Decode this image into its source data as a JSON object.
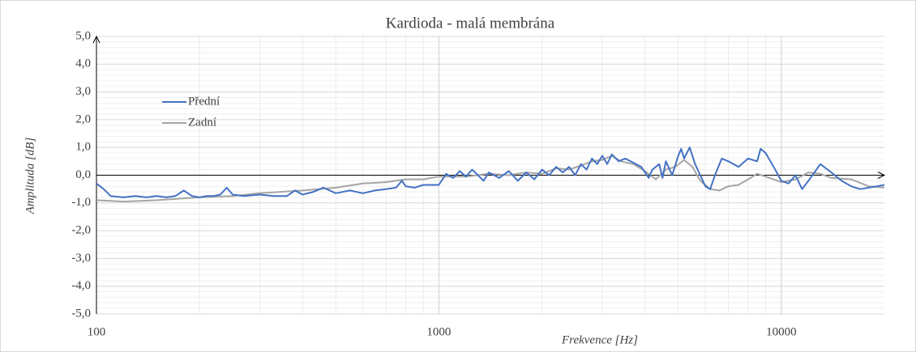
{
  "chart_data": {
    "type": "line",
    "title": "Kardioda - malá membrána",
    "xlabel": "Frekvence [Hz]",
    "ylabel": "Amplituda [dB]",
    "xscale": "log",
    "xlim": [
      100,
      20000
    ],
    "xticks": [
      100,
      1000,
      10000
    ],
    "ylim": [
      -5,
      5
    ],
    "yticks": [
      {
        "value": -5,
        "label": "-5,0"
      },
      {
        "value": -4,
        "label": "-4,0"
      },
      {
        "value": -3,
        "label": "-3,0"
      },
      {
        "value": -2,
        "label": "-2,0"
      },
      {
        "value": -1,
        "label": "-1,0"
      },
      {
        "value": 0,
        "label": "0,0"
      },
      {
        "value": 1,
        "label": "1,0"
      },
      {
        "value": 2,
        "label": "2,0"
      },
      {
        "value": 3,
        "label": "3,0"
      },
      {
        "value": 4,
        "label": "4,0"
      },
      {
        "value": 5,
        "label": "5,0"
      }
    ],
    "grid": true,
    "minor_grid": true,
    "legend": "upper left",
    "series": [
      {
        "name": "Přední",
        "color": "#4472c4",
        "x": [
          100,
          105,
          110,
          120,
          130,
          140,
          150,
          160,
          170,
          180,
          190,
          200,
          210,
          220,
          230,
          240,
          250,
          270,
          300,
          330,
          360,
          380,
          400,
          430,
          460,
          500,
          550,
          600,
          650,
          700,
          750,
          780,
          800,
          850,
          900,
          1000,
          1050,
          1100,
          1150,
          1200,
          1250,
          1300,
          1350,
          1400,
          1500,
          1600,
          1700,
          1800,
          1900,
          2000,
          2100,
          2200,
          2300,
          2400,
          2500,
          2600,
          2700,
          2800,
          2900,
          3000,
          3100,
          3200,
          3350,
          3500,
          3700,
          3900,
          4000,
          4100,
          4200,
          4400,
          4500,
          4600,
          4800,
          5000,
          5100,
          5200,
          5400,
          5600,
          5800,
          6000,
          6200,
          6400,
          6700,
          7000,
          7500,
          8000,
          8500,
          8700,
          9000,
          9500,
          10000,
          10500,
          11000,
          11500,
          12000,
          13000,
          14000,
          15000,
          16000,
          17000,
          18000,
          19000,
          20000
        ],
        "values": [
          -0.3,
          -0.5,
          -0.75,
          -0.8,
          -0.75,
          -0.8,
          -0.75,
          -0.8,
          -0.75,
          -0.55,
          -0.75,
          -0.8,
          -0.75,
          -0.75,
          -0.7,
          -0.45,
          -0.7,
          -0.75,
          -0.7,
          -0.75,
          -0.75,
          -0.55,
          -0.7,
          -0.6,
          -0.45,
          -0.65,
          -0.55,
          -0.65,
          -0.55,
          -0.5,
          -0.45,
          -0.2,
          -0.4,
          -0.45,
          -0.35,
          -0.35,
          0.05,
          -0.1,
          0.15,
          -0.05,
          0.2,
          0.0,
          -0.2,
          0.1,
          -0.1,
          0.15,
          -0.2,
          0.1,
          -0.15,
          0.2,
          0.0,
          0.3,
          0.1,
          0.3,
          0.0,
          0.4,
          0.2,
          0.6,
          0.4,
          0.7,
          0.4,
          0.75,
          0.5,
          0.6,
          0.45,
          0.3,
          0.1,
          -0.1,
          0.2,
          0.4,
          -0.1,
          0.5,
          0.0,
          0.7,
          0.95,
          0.6,
          1.0,
          0.4,
          0.0,
          -0.4,
          -0.5,
          0.0,
          0.6,
          0.5,
          0.3,
          0.6,
          0.5,
          0.95,
          0.8,
          0.3,
          -0.2,
          -0.3,
          0.0,
          -0.5,
          -0.2,
          0.4,
          0.1,
          -0.2,
          -0.4,
          -0.5,
          -0.45,
          -0.4,
          -0.35
        ]
      },
      {
        "name": "Zadní",
        "color": "#a5a5a5",
        "x": [
          100,
          120,
          150,
          200,
          250,
          300,
          400,
          500,
          600,
          700,
          800,
          900,
          1000,
          1200,
          1400,
          1600,
          1800,
          2000,
          2200,
          2400,
          2600,
          2800,
          3000,
          3200,
          3400,
          3700,
          4000,
          4300,
          4600,
          4900,
          5200,
          5500,
          5800,
          6200,
          6600,
          7000,
          7500,
          8000,
          8500,
          9000,
          10000,
          11000,
          12000,
          13000,
          14000,
          16000,
          18000,
          20000
        ],
        "values": [
          -0.9,
          -0.95,
          -0.9,
          -0.8,
          -0.75,
          -0.65,
          -0.55,
          -0.45,
          -0.3,
          -0.25,
          -0.15,
          -0.15,
          -0.05,
          -0.05,
          0.05,
          0.0,
          0.1,
          0.05,
          0.25,
          0.2,
          0.35,
          0.5,
          0.55,
          0.7,
          0.5,
          0.4,
          0.15,
          -0.15,
          0.2,
          0.3,
          0.55,
          0.3,
          -0.2,
          -0.5,
          -0.55,
          -0.4,
          -0.35,
          -0.15,
          0.05,
          -0.05,
          -0.25,
          -0.15,
          0.1,
          0.05,
          -0.1,
          -0.15,
          -0.4,
          -0.45
        ]
      }
    ]
  }
}
